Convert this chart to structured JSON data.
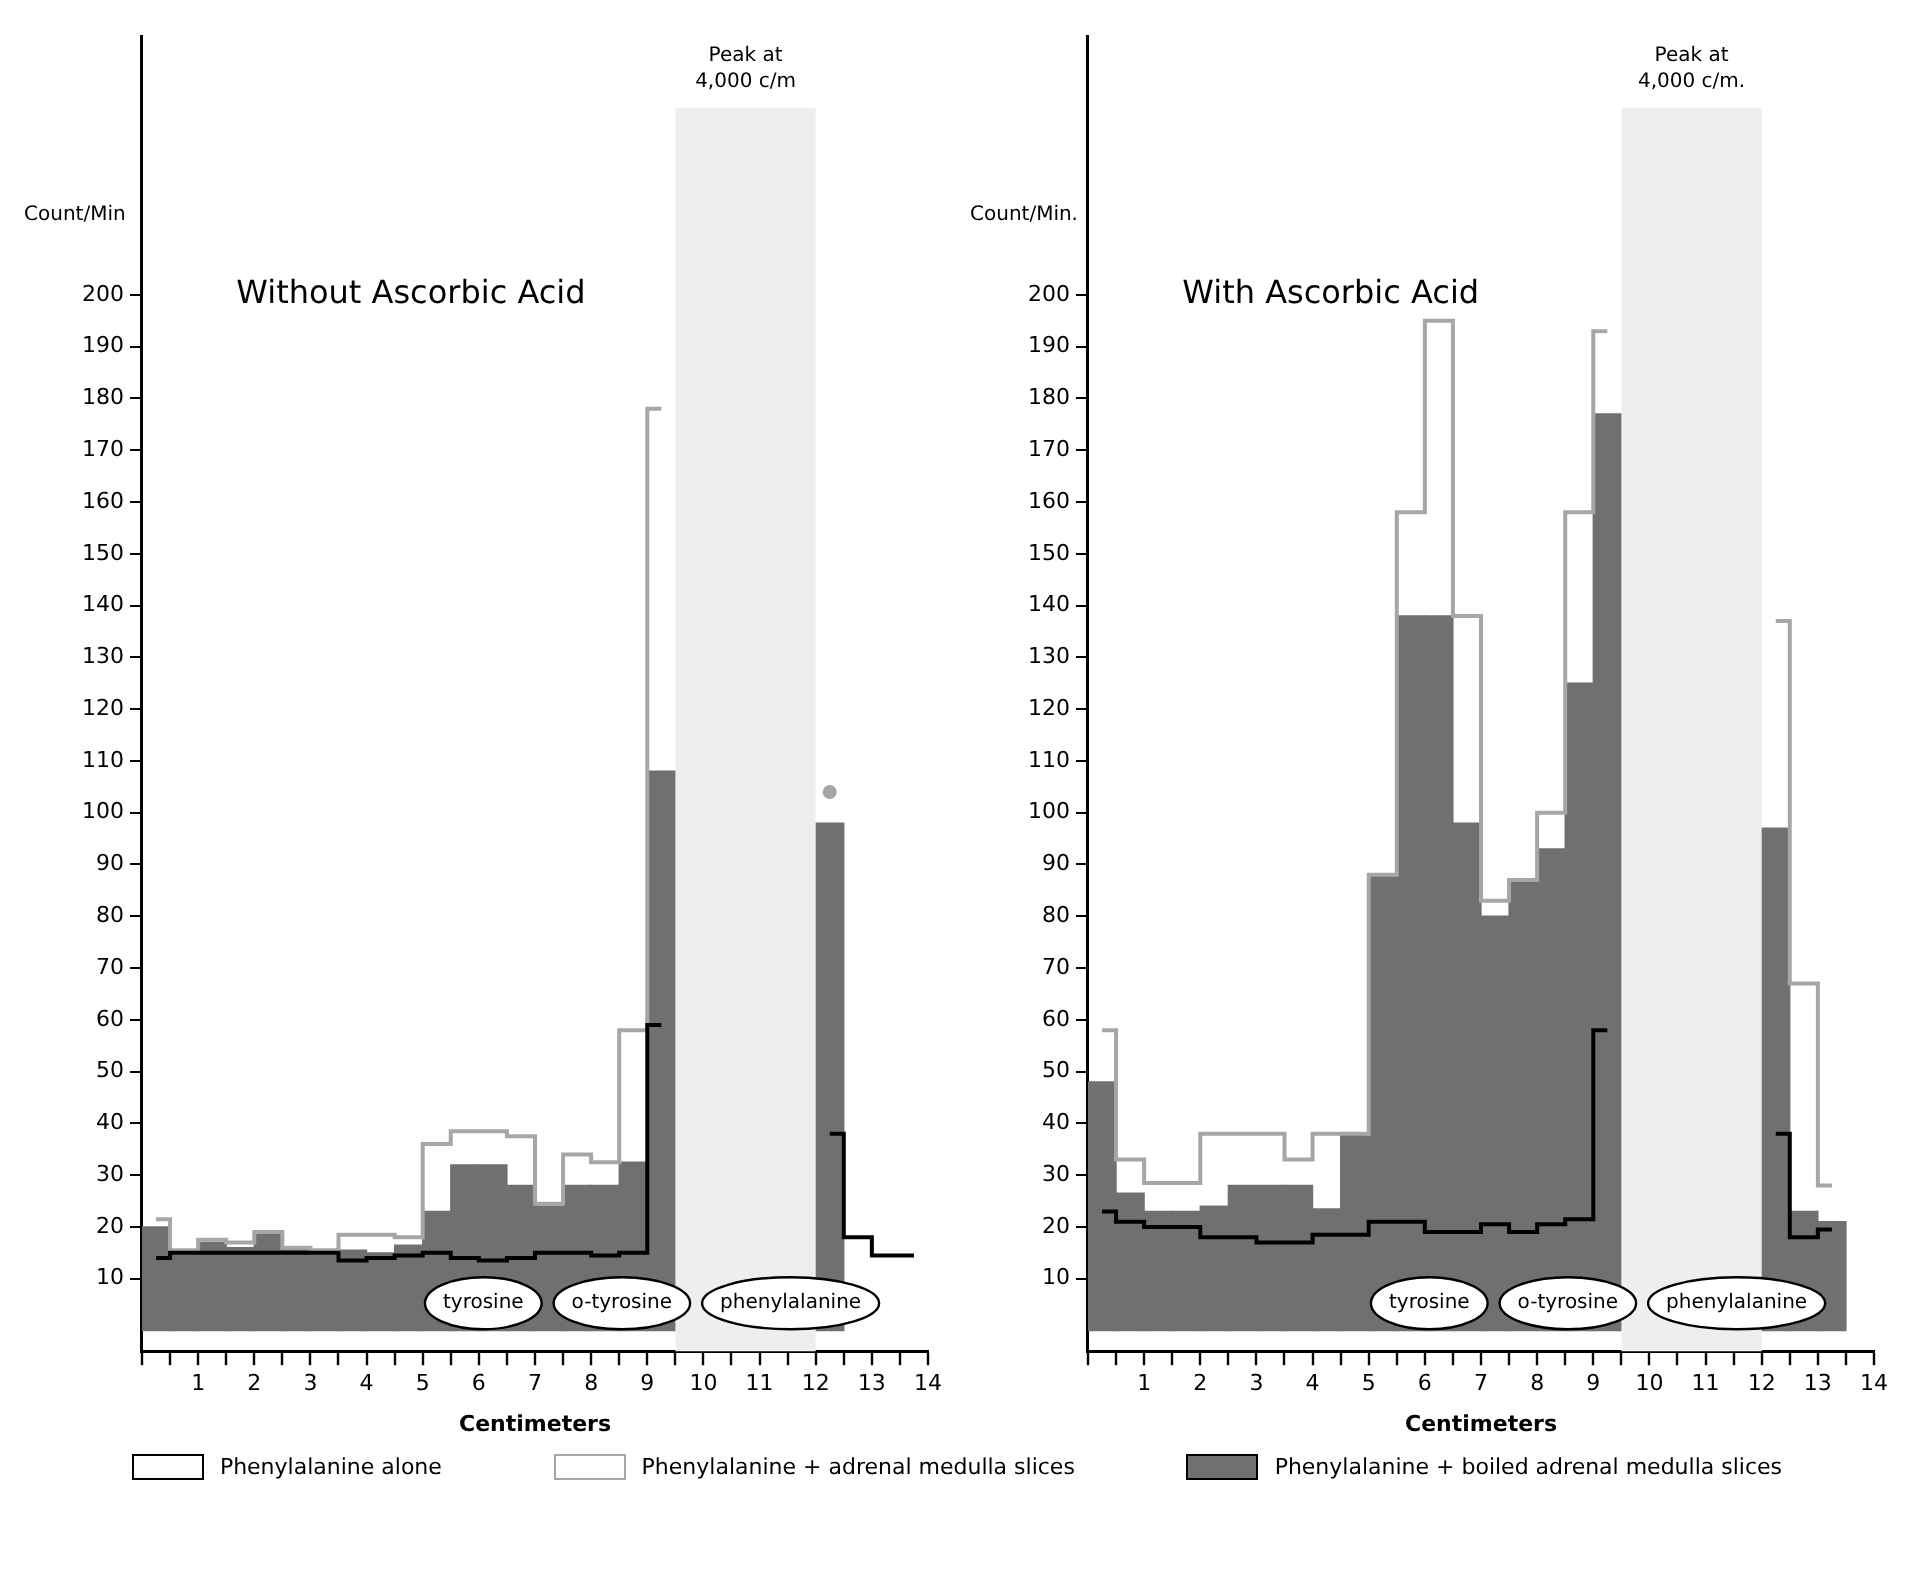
{
  "chart_data": [
    {
      "type": "bar",
      "title": "Without Ascorbic Acid",
      "ylabel": "Count/Min",
      "xlabel": "Centimeters",
      "legend": "bottom",
      "grid": false,
      "x": [
        0.25,
        0.75,
        1.25,
        1.75,
        2.25,
        2.75,
        3.25,
        3.75,
        4.25,
        4.75,
        5.25,
        5.75,
        6.25,
        6.75,
        7.25,
        7.75,
        8.25,
        8.75,
        9.25,
        9.75,
        10.25,
        10.75,
        11.25,
        11.75,
        12.25,
        12.75,
        13.25,
        13.75
      ],
      "series": [
        {
          "name": "Phenylalanine alone",
          "type": "step",
          "color": "#000000",
          "values": [
            14,
            15,
            15,
            15,
            15,
            15,
            15,
            13.5,
            14,
            14.5,
            15,
            14,
            13.5,
            14,
            15,
            15,
            14.5,
            15,
            59,
            null,
            null,
            null,
            null,
            null,
            38,
            18,
            14.5,
            14.5
          ]
        },
        {
          "name": "Phenylalanine + adrenal medulla slices",
          "type": "step",
          "color": "#a6a6a6",
          "values": [
            21.5,
            15.5,
            17.5,
            17,
            19,
            16,
            15.5,
            18.5,
            18.5,
            18,
            36,
            38.5,
            38.5,
            37.5,
            24.5,
            34,
            32.5,
            58,
            178,
            null,
            null,
            null,
            null,
            null,
            104,
            null,
            null,
            null
          ]
        },
        {
          "name": "Phenylalanine + boiled adrenal medulla slices",
          "color": "#707070",
          "values": [
            20,
            15,
            17,
            16,
            18.5,
            16,
            15.5,
            15.5,
            15,
            16.5,
            23,
            32,
            32,
            28,
            24,
            28,
            28,
            32.5,
            108,
            null,
            null,
            null,
            null,
            null,
            98,
            null,
            null,
            null
          ]
        }
      ],
      "bands": [
        {
          "axis": "x",
          "from": 9.5,
          "to": 12,
          "label": "Peak at 4,000 c/m",
          "color": "#eeeeee"
        }
      ],
      "ylim": [
        -4,
        250
      ],
      "yticks": [
        10,
        20,
        30,
        40,
        50,
        60,
        70,
        80,
        90,
        100,
        110,
        120,
        130,
        140,
        150,
        160,
        170,
        180,
        190,
        200
      ],
      "xlim": [
        0,
        14
      ],
      "xticks": [
        {
          "value": 0,
          "label": null
        },
        {
          "value": 0.5,
          "label": null
        },
        1,
        {
          "value": 1.5,
          "label": null
        },
        2,
        {
          "value": 2.5,
          "label": null
        },
        3,
        {
          "value": 3.5,
          "label": null
        },
        4,
        {
          "value": 4.5,
          "label": null
        },
        5,
        {
          "value": 5.5,
          "label": null
        },
        6,
        {
          "value": 6.5,
          "label": null
        },
        7,
        {
          "value": 7.5,
          "label": null
        },
        8,
        {
          "value": 8.5,
          "label": null
        },
        9,
        {
          "value": 9.5,
          "label": null
        },
        10,
        {
          "value": 10.5,
          "label": null
        },
        11,
        {
          "value": 11.5,
          "label": null
        },
        12,
        {
          "value": 12.5,
          "label": null
        },
        13,
        {
          "value": 13.5,
          "label": null
        },
        14
      ],
      "annotations": [
        "tyrosine",
        "o-tyrosine",
        "phenylalanine"
      ]
    },
    {
      "type": "bar",
      "title": "With Ascorbic Acid",
      "ylabel": "Count/Min.",
      "xlabel": "Centimeters",
      "grid": false,
      "x": [
        0.25,
        0.75,
        1.25,
        1.75,
        2.25,
        2.75,
        3.25,
        3.75,
        4.25,
        4.75,
        5.25,
        5.75,
        6.25,
        6.75,
        7.25,
        7.75,
        8.25,
        8.75,
        9.25,
        9.75,
        10.25,
        10.75,
        11.25,
        11.75,
        12.25,
        12.75,
        13.25
      ],
      "series": [
        {
          "type": "step",
          "color": "#000000",
          "values": [
            23,
            21,
            20,
            20,
            18,
            18,
            17,
            17,
            18.5,
            18.5,
            21,
            21,
            19,
            19,
            20.5,
            19,
            20.5,
            21.5,
            58,
            null,
            null,
            null,
            null,
            null,
            38,
            18,
            19.5
          ]
        },
        {
          "type": "step",
          "color": "#a6a6a6",
          "values": [
            58,
            33,
            28.5,
            28.5,
            38,
            38,
            38,
            33,
            38,
            38,
            88,
            158,
            195,
            138,
            83,
            87,
            100,
            158,
            193,
            null,
            null,
            null,
            null,
            null,
            137,
            67,
            28
          ]
        },
        {
          "color": "#707070",
          "values": [
            48,
            26.5,
            23,
            23,
            24,
            28,
            28,
            28,
            23.5,
            38,
            88,
            138,
            138,
            98,
            80,
            87,
            93,
            125,
            177,
            null,
            null,
            null,
            null,
            null,
            97,
            23,
            21
          ]
        }
      ],
      "bands": [
        {
          "axis": "x",
          "from": 9.5,
          "to": 12,
          "label": "Peak at 4,000 c/m.",
          "color": "#eeeeee"
        }
      ],
      "ylim": [
        -4,
        250
      ],
      "yticks": [
        10,
        20,
        30,
        40,
        50,
        60,
        70,
        80,
        90,
        100,
        110,
        120,
        130,
        140,
        150,
        160,
        170,
        180,
        190,
        200
      ],
      "xlim": [
        0,
        14
      ],
      "xticks": [
        {
          "value": 0,
          "label": null
        },
        {
          "value": 0.5,
          "label": null
        },
        1,
        {
          "value": 1.5,
          "label": null
        },
        2,
        {
          "value": 2.5,
          "label": null
        },
        3,
        {
          "value": 3.5,
          "label": null
        },
        4,
        {
          "value": 4.5,
          "label": null
        },
        5,
        {
          "value": 5.5,
          "label": null
        },
        6,
        {
          "value": 6.5,
          "label": null
        },
        7,
        {
          "value": 7.5,
          "label": null
        },
        8,
        {
          "value": 8.5,
          "label": null
        },
        9,
        {
          "value": 9.5,
          "label": null
        },
        10,
        {
          "value": 10.5,
          "label": null
        },
        11,
        {
          "value": 11.5,
          "label": null
        },
        12,
        {
          "value": 12.5,
          "label": null
        },
        13,
        {
          "value": 13.5,
          "label": null
        },
        14
      ],
      "annotations": [
        "tyrosine",
        "o-tyrosine",
        "phenylalanine"
      ]
    }
  ]
}
